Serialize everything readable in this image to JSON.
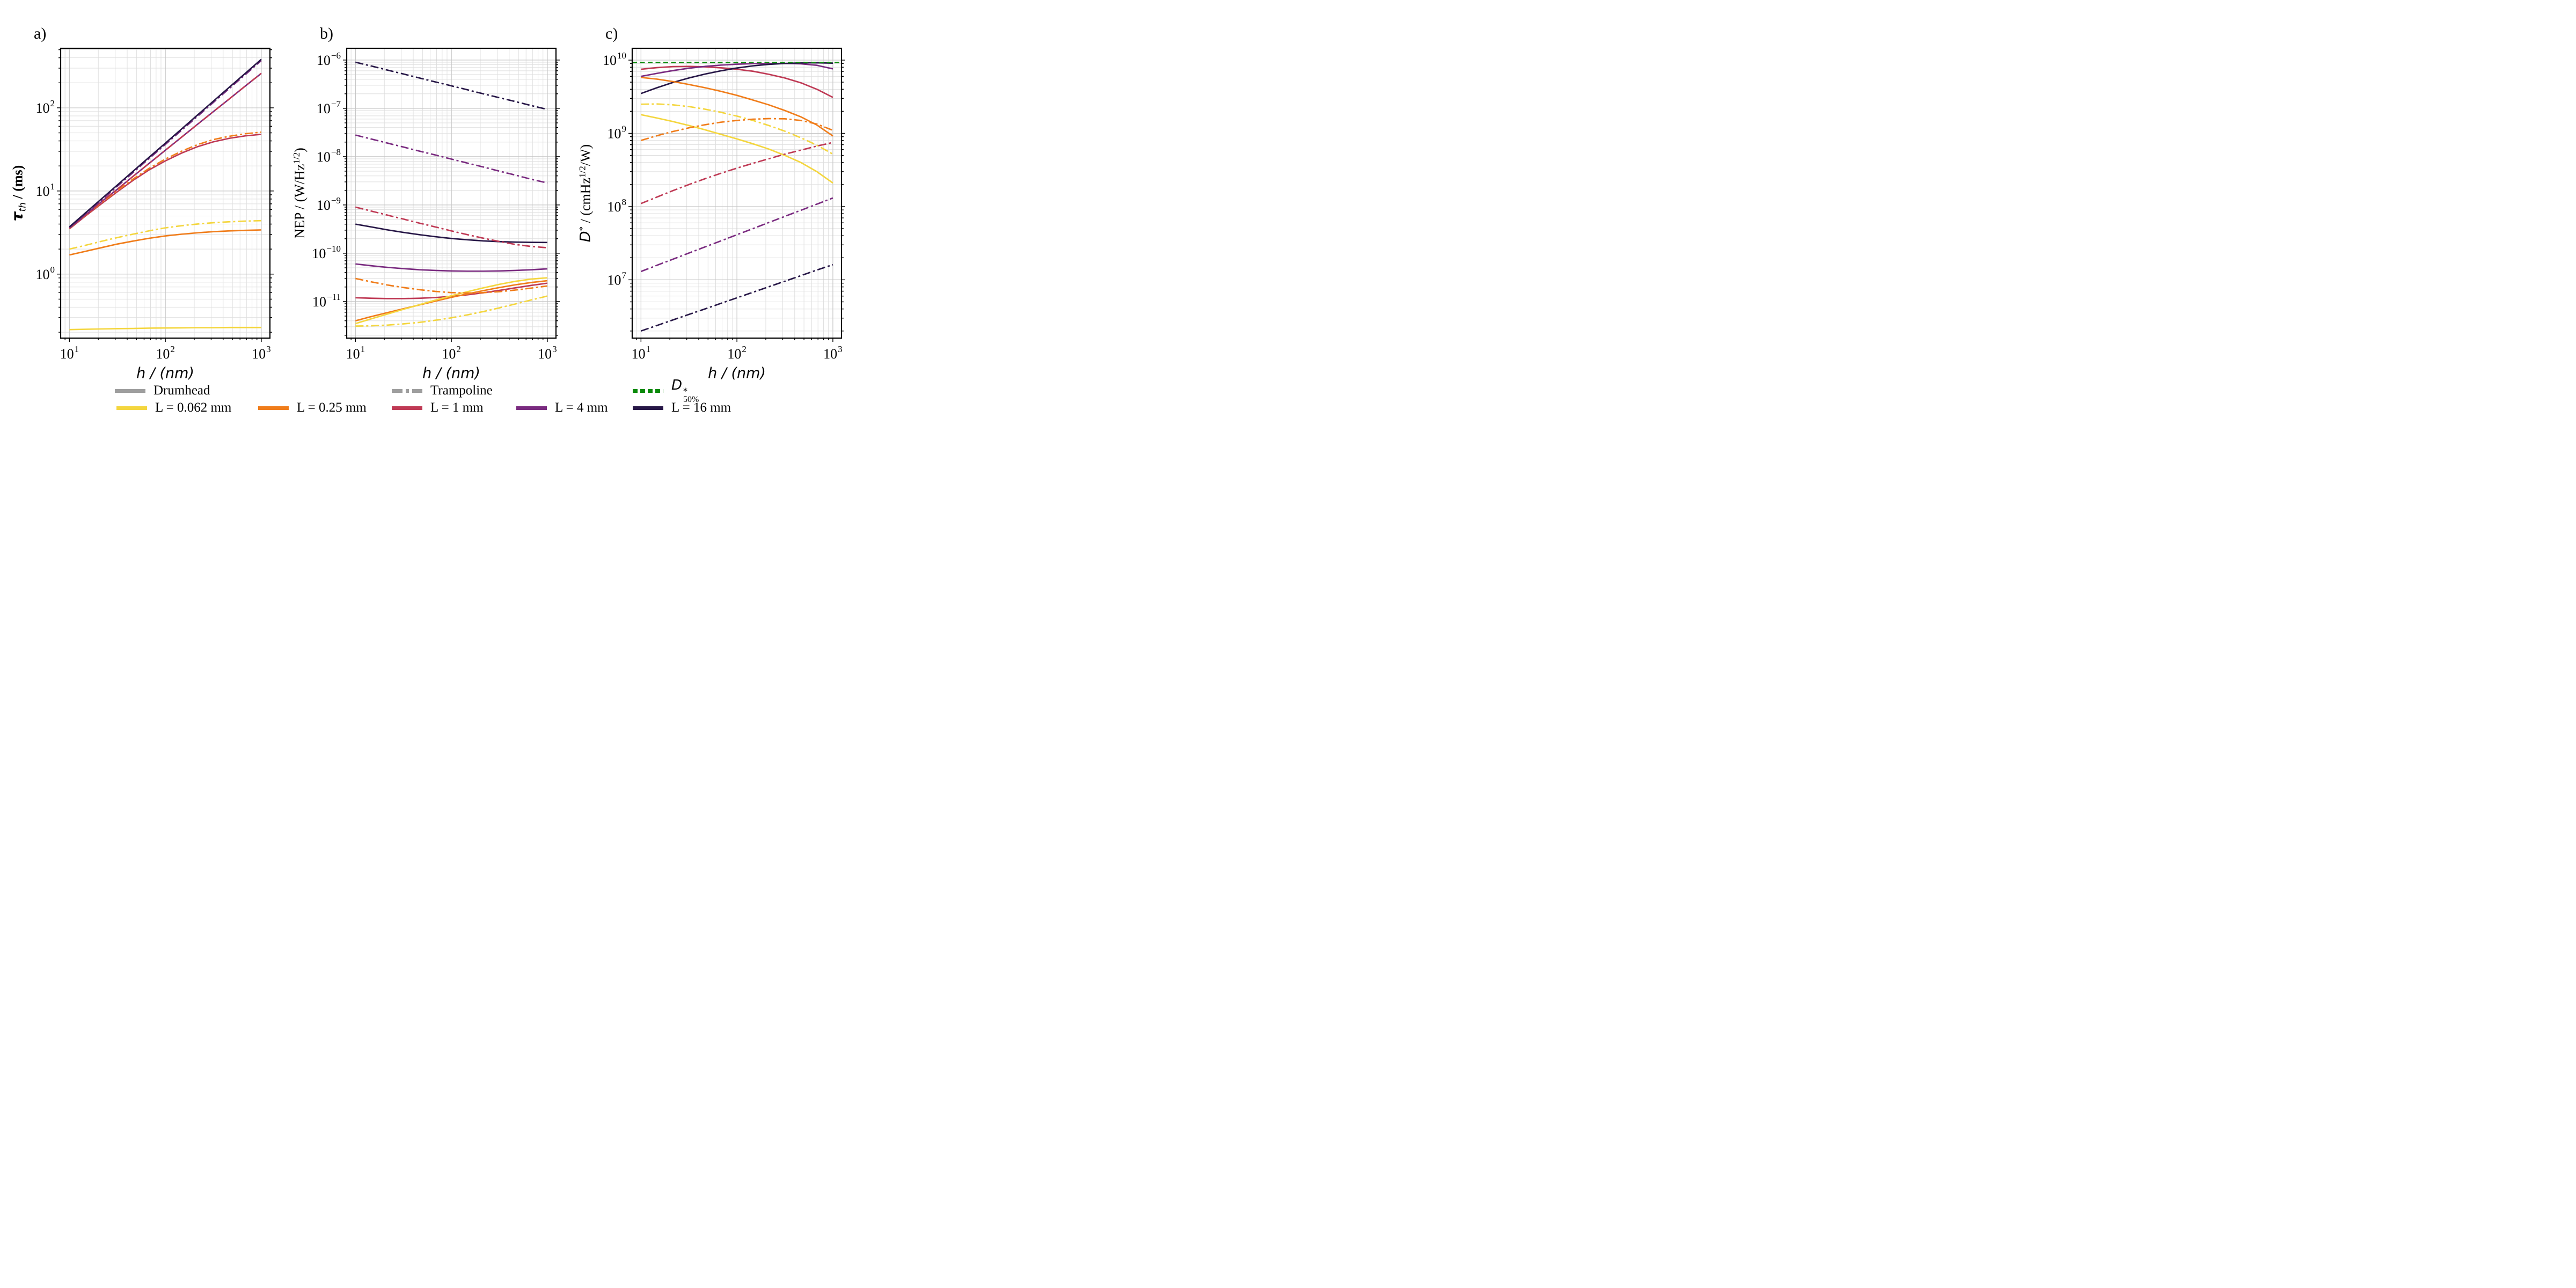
{
  "colors": {
    "yellow": "#F4D63F",
    "orange": "#F07D1B",
    "crimson": "#BF3A55",
    "purple": "#7A2B80",
    "navy": "#271747",
    "gray": "#9E9E9E",
    "green": "#0A8A0A"
  },
  "panel_letters": [
    "a)",
    "b)",
    "c)"
  ],
  "legend": {
    "row1": [
      {
        "label": "Drumhead",
        "color": "gray",
        "style": "solid"
      },
      {
        "label": "Trampoline",
        "color": "gray",
        "style": "dashdot"
      },
      {
        "label_main": "D",
        "label_sup": "*",
        "label_sub": "50%",
        "color": "green",
        "style": "dashed"
      }
    ],
    "row2": [
      {
        "label": "L = 0.062 mm",
        "color": "yellow",
        "style": "solid"
      },
      {
        "label": "L = 0.25 mm",
        "color": "orange",
        "style": "solid"
      },
      {
        "label": "L = 1 mm",
        "color": "crimson",
        "style": "solid"
      },
      {
        "label": "L = 4 mm",
        "color": "purple",
        "style": "solid"
      },
      {
        "label": "L = 16 mm",
        "color": "navy",
        "style": "solid"
      }
    ]
  },
  "chart_data": [
    {
      "id": "a",
      "type": "line",
      "xlabel": "h / (nm)",
      "ylabel_parts": {
        "tau": "τ",
        "sub": "th",
        "unit": " / (ms)"
      },
      "xscale": "log",
      "yscale": "log",
      "xlim": [
        8.1,
        1230
      ],
      "ylim": [
        0.17,
        520
      ],
      "grid": true,
      "x_ticks": {
        "values": [
          10,
          100,
          1000
        ],
        "exponents": [
          "1",
          "2",
          "3"
        ]
      },
      "y_ticks": {
        "values": [
          1,
          10,
          100
        ],
        "exponents": [
          "0",
          "1",
          "2"
        ]
      },
      "x": [
        10,
        14.7,
        21.5,
        31.6,
        46.4,
        68.1,
        100,
        147,
        215,
        316,
        464,
        681,
        1000
      ],
      "series": [
        {
          "name": "Drumhead L = 0.062 mm",
          "color": "yellow",
          "dash": "solid",
          "y": [
            0.215,
            0.217,
            0.219,
            0.221,
            0.222,
            0.224,
            0.225,
            0.226,
            0.227,
            0.227,
            0.228,
            0.228,
            0.228
          ]
        },
        {
          "name": "Drumhead L = 0.25 mm",
          "color": "orange",
          "dash": "solid",
          "y": [
            1.7,
            1.88,
            2.08,
            2.3,
            2.5,
            2.7,
            2.88,
            3.02,
            3.14,
            3.24,
            3.31,
            3.36,
            3.4
          ]
        },
        {
          "name": "Trampoline L = 0.062 mm",
          "color": "yellow",
          "dash": "dashdot",
          "y": [
            2.0,
            2.22,
            2.48,
            2.75,
            3.03,
            3.32,
            3.6,
            3.82,
            4.0,
            4.15,
            4.26,
            4.34,
            4.4
          ]
        },
        {
          "name": "Drumhead L = 1 mm",
          "color": "crimson",
          "dash": "solid",
          "y": [
            3.5,
            5.0,
            7.0,
            9.8,
            13.5,
            18.0,
            23.0,
            28.5,
            34.0,
            39.0,
            43.0,
            46.0,
            48.0
          ]
        },
        {
          "name": "Trampoline L = 0.25 mm",
          "color": "orange",
          "dash": "dashdot",
          "y": [
            3.55,
            5.1,
            7.2,
            10.1,
            14.0,
            18.8,
            24.2,
            30.0,
            36.0,
            41.5,
            45.5,
            48.8,
            51.0
          ]
        },
        {
          "name": "Drumhead L = 4 mm",
          "color": "purple",
          "dash": "solid",
          "y": [
            3.6,
            5.15,
            7.4,
            10.5,
            15.1,
            21.6,
            30.9,
            44.2,
            63.0,
            90.0,
            128,
            183,
            260
          ]
        },
        {
          "name": "Trampoline L = 1 mm",
          "color": "crimson",
          "dash": "dashdot",
          "y": [
            3.6,
            5.15,
            7.4,
            10.5,
            15.1,
            21.6,
            30.9,
            44.2,
            63.0,
            90.0,
            128,
            183,
            260
          ]
        },
        {
          "name": "Trampoline L = 4 mm",
          "color": "purple",
          "dash": "dashdot",
          "y": [
            3.57,
            5.26,
            7.72,
            11.4,
            16.8,
            24.7,
            36.3,
            53.5,
            78.6,
            116,
            171,
            251,
            370
          ]
        },
        {
          "name": "Drumhead L = 16 mm",
          "color": "navy",
          "dash": "solid",
          "y": [
            3.7,
            5.45,
            8.0,
            11.8,
            17.4,
            25.6,
            37.6,
            55.4,
            81.5,
            120,
            177,
            260,
            383
          ]
        }
      ]
    },
    {
      "id": "b",
      "type": "line",
      "xlabel": "h / (nm)",
      "ylabel_parts": {
        "pre": "NEP / (W/Hz",
        "sup": "1/2",
        "post": ")"
      },
      "xscale": "log",
      "yscale": "log",
      "xlim": [
        8.1,
        1230
      ],
      "ylim": [
        1.75e-12,
        1.75e-06
      ],
      "grid": true,
      "x_ticks": {
        "values": [
          10,
          100,
          1000
        ],
        "exponents": [
          "1",
          "2",
          "3"
        ]
      },
      "y_ticks": {
        "values": [
          1e-06,
          1e-07,
          1e-08,
          1e-09,
          1e-10,
          1e-11
        ],
        "exponents": [
          "−6",
          "−7",
          "−8",
          "−9",
          "−10",
          "−11"
        ]
      },
      "x": [
        10,
        14.7,
        21.5,
        31.6,
        46.4,
        68.1,
        100,
        147,
        215,
        316,
        464,
        681,
        1000
      ],
      "series": [
        {
          "name": "Drumhead L = 16 mm",
          "color": "navy",
          "dash": "solid",
          "y": [
            4e-10,
            3.5e-10,
            3.05e-10,
            2.7e-10,
            2.42e-10,
            2.2e-10,
            2.02e-10,
            1.9e-10,
            1.8e-10,
            1.74e-10,
            1.7e-10,
            1.68e-10,
            1.67e-10
          ]
        },
        {
          "name": "Drumhead L = 4 mm",
          "color": "purple",
          "dash": "solid",
          "y": [
            6e-11,
            5.5e-11,
            5.1e-11,
            4.8e-11,
            4.55e-11,
            4.4e-11,
            4.3e-11,
            4.25e-11,
            4.25e-11,
            4.3e-11,
            4.4e-11,
            4.55e-11,
            4.75e-11
          ]
        },
        {
          "name": "Drumhead L = 1 mm",
          "color": "crimson",
          "dash": "solid",
          "y": [
            1.2e-11,
            1.17e-11,
            1.15e-11,
            1.15e-11,
            1.17e-11,
            1.21e-11,
            1.28e-11,
            1.38e-11,
            1.52e-11,
            1.7e-11,
            1.92e-11,
            2.16e-11,
            2.4e-11
          ]
        },
        {
          "name": "Drumhead L = 0.25 mm",
          "color": "orange",
          "dash": "solid",
          "y": [
            4e-12,
            4.9e-12,
            5.9e-12,
            7.1e-12,
            8.5e-12,
            1.02e-11,
            1.22e-11,
            1.44e-11,
            1.68e-11,
            1.95e-11,
            2.22e-11,
            2.48e-11,
            2.7e-11
          ]
        },
        {
          "name": "Drumhead L = 0.062 mm",
          "color": "yellow",
          "dash": "solid",
          "y": [
            3.5e-12,
            4.4e-12,
            5.5e-12,
            6.9e-12,
            8.6e-12,
            1.07e-11,
            1.32e-11,
            1.6e-11,
            1.92e-11,
            2.27e-11,
            2.62e-11,
            2.92e-11,
            3.1e-11
          ]
        },
        {
          "name": "Trampoline L = 16 mm",
          "color": "navy",
          "dash": "dashdot",
          "y": [
            9e-07,
            7.5e-07,
            6.2e-07,
            5.15e-07,
            4.25e-07,
            3.52e-07,
            2.92e-07,
            2.42e-07,
            2e-07,
            1.66e-07,
            1.38e-07,
            1.14e-07,
            9.5e-08
          ]
        },
        {
          "name": "Trampoline L = 4 mm",
          "color": "purple",
          "dash": "dashdot",
          "y": [
            2.8e-08,
            2.31e-08,
            1.91e-08,
            1.58e-08,
            1.3e-08,
            1.08e-08,
            8.9e-09,
            7.35e-09,
            6.1e-09,
            5e-09,
            4.15e-09,
            3.4e-09,
            2.85e-09
          ]
        },
        {
          "name": "Trampoline L = 1 mm",
          "color": "crimson",
          "dash": "dashdot",
          "y": [
            9e-10,
            7.45e-10,
            6.15e-10,
            5.1e-10,
            4.2e-10,
            3.5e-10,
            2.9e-10,
            2.42e-10,
            2.05e-10,
            1.75e-10,
            1.52e-10,
            1.38e-10,
            1.3e-10
          ]
        },
        {
          "name": "Trampoline L = 0.25 mm",
          "color": "orange",
          "dash": "dashdot",
          "y": [
            3e-11,
            2.55e-11,
            2.2e-11,
            1.95e-11,
            1.76e-11,
            1.62e-11,
            1.53e-11,
            1.5e-11,
            1.53e-11,
            1.6e-11,
            1.73e-11,
            1.9e-11,
            2.1e-11
          ]
        },
        {
          "name": "Trampoline L = 0.062 mm",
          "color": "yellow",
          "dash": "dashdot",
          "y": [
            3.1e-12,
            3.15e-12,
            3.25e-12,
            3.45e-12,
            3.7e-12,
            4.1e-12,
            4.6e-12,
            5.3e-12,
            6.2e-12,
            7.4e-12,
            8.9e-12,
            1.08e-11,
            1.3e-11
          ]
        }
      ]
    },
    {
      "id": "c",
      "type": "line",
      "xlabel": "h / (nm)",
      "ylabel_parts": {
        "var": "D",
        "sup1": "*",
        "mid": " / (cmHz",
        "sup2": "1/2",
        "post": "/W)"
      },
      "xscale": "log",
      "yscale": "log",
      "xlim": [
        8.1,
        1230
      ],
      "ylim": [
        1600000.0,
        14500000000.0
      ],
      "grid": true,
      "x_ticks": {
        "values": [
          10,
          100,
          1000
        ],
        "exponents": [
          "1",
          "2",
          "3"
        ]
      },
      "y_ticks": {
        "values": [
          10000000.0,
          100000000.0,
          1000000000.0,
          10000000000.0
        ],
        "exponents": [
          "7",
          "8",
          "9",
          "10"
        ]
      },
      "x": [
        10,
        14.7,
        21.5,
        31.6,
        46.4,
        68.1,
        100,
        147,
        215,
        316,
        464,
        681,
        1000
      ],
      "series": [
        {
          "name": "Drumhead L = 1 mm",
          "color": "crimson",
          "dash": "solid",
          "y": [
            7500000000.0,
            7900000000.0,
            8150000000.0,
            8200000000.0,
            8100000000.0,
            7850000000.0,
            7500000000.0,
            7050000000.0,
            6400000000.0,
            5700000000.0,
            4900000000.0,
            4000000000.0,
            3100000000.0
          ]
        },
        {
          "name": "Drumhead L = 4 mm",
          "color": "purple",
          "dash": "solid",
          "y": [
            6000000000.0,
            6600000000.0,
            7200000000.0,
            7750000000.0,
            8200000000.0,
            8550000000.0,
            8800000000.0,
            8950000000.0,
            9000000000.0,
            9000000000.0,
            8900000000.0,
            8500000000.0,
            7600000000.0
          ]
        },
        {
          "name": "Drumhead L = 16 mm",
          "color": "navy",
          "dash": "solid",
          "y": [
            3500000000.0,
            4200000000.0,
            4950000000.0,
            5700000000.0,
            6450000000.0,
            7150000000.0,
            7800000000.0,
            8350000000.0,
            8750000000.0,
            9000000000.0,
            9150000000.0,
            9200000000.0,
            9100000000.0
          ]
        },
        {
          "name": "Drumhead L = 0.25 mm",
          "color": "orange",
          "dash": "solid",
          "y": [
            5800000000.0,
            5500000000.0,
            5100000000.0,
            4650000000.0,
            4200000000.0,
            3750000000.0,
            3300000000.0,
            2850000000.0,
            2450000000.0,
            2050000000.0,
            1680000000.0,
            1300000000.0,
            920000000.0
          ]
        },
        {
          "name": "Drumhead L = 0.062 mm",
          "color": "yellow",
          "dash": "solid",
          "y": [
            1800000000.0,
            1620000000.0,
            1450000000.0,
            1280000000.0,
            1120000000.0,
            970000000.0,
            840000000.0,
            720000000.0,
            610000000.0,
            500000000.0,
            400000000.0,
            300000000.0,
            210000000.0
          ]
        },
        {
          "name": "Trampoline L = 0.062 mm",
          "color": "yellow",
          "dash": "dashdot",
          "y": [
            2500000000.0,
            2520000000.0,
            2450000000.0,
            2320000000.0,
            2140000000.0,
            1940000000.0,
            1720000000.0,
            1500000000.0,
            1280000000.0,
            1070000000.0,
            870000000.0,
            690000000.0,
            520000000.0
          ]
        },
        {
          "name": "Trampoline L = 0.25 mm",
          "color": "orange",
          "dash": "dashdot",
          "y": [
            800000000.0,
            930000000.0,
            1060000000.0,
            1190000000.0,
            1310000000.0,
            1420000000.0,
            1500000000.0,
            1560000000.0,
            1590000000.0,
            1580000000.0,
            1500000000.0,
            1340000000.0,
            1100000000.0
          ]
        },
        {
          "name": "Trampoline L = 1 mm",
          "color": "crimson",
          "dash": "dashdot",
          "y": [
            110000000.0,
            135000000.0,
            165000000.0,
            200000000.0,
            240000000.0,
            285000000.0,
            335000000.0,
            390000000.0,
            450000000.0,
            520000000.0,
            590000000.0,
            670000000.0,
            750000000.0
          ]
        },
        {
          "name": "Trampoline L = 4 mm",
          "color": "purple",
          "dash": "dashdot",
          "y": [
            13000000.0,
            15800000.0,
            19100000.0,
            23200000.0,
            28100000.0,
            34000000.0,
            41300000.0,
            50000000.0,
            60600000.0,
            73500000.0,
            89000000.0,
            108000000.0,
            131000000.0
          ]
        },
        {
          "name": "Trampoline L = 16 mm",
          "color": "navy",
          "dash": "dashdot",
          "y": [
            2000000.0,
            2380000.0,
            2830000.0,
            3370000.0,
            4000000.0,
            4770000.0,
            5680000.0,
            6760000.0,
            8040000.0,
            9570000.0,
            11400000.0,
            13600000.0,
            16100000.0
          ]
        },
        {
          "name": "D*_50%",
          "color": "green",
          "dash": "dashed",
          "full_width": true,
          "y_const": 9300000000.0
        }
      ]
    }
  ]
}
